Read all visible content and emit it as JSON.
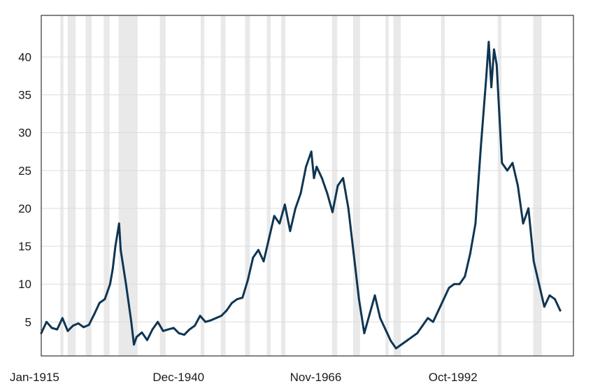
{
  "chart_data": {
    "type": "line",
    "title": "",
    "xlabel": "",
    "ylabel": "",
    "x_tick_labels": [
      "Jan-1915",
      "Dec-1940",
      "Nov-1966",
      "Oct-1992"
    ],
    "x_tick_dates": [
      1915.0,
      1940.92,
      1966.83,
      1992.75
    ],
    "y_ticks": [
      5,
      10,
      15,
      20,
      25,
      30,
      35,
      40
    ],
    "xlim": [
      1915.0,
      2015.5
    ],
    "ylim": [
      0.5,
      45.5
    ],
    "grid": true,
    "legend": "none",
    "colors": {
      "line": "#0f3552",
      "recession": "#e9e9e9",
      "grid": "#dcdcdc",
      "frame": "#333333"
    },
    "recessions": [
      [
        1918.6,
        1919.2
      ],
      [
        1920.0,
        1921.5
      ],
      [
        1923.4,
        1924.5
      ],
      [
        1926.8,
        1927.9
      ],
      [
        1929.6,
        1933.2
      ],
      [
        1937.4,
        1938.5
      ],
      [
        1945.1,
        1945.8
      ],
      [
        1948.9,
        1949.8
      ],
      [
        1953.5,
        1954.4
      ],
      [
        1957.6,
        1958.3
      ],
      [
        1960.3,
        1961.1
      ],
      [
        1969.9,
        1970.9
      ],
      [
        1973.9,
        1975.2
      ],
      [
        1980.0,
        1980.6
      ],
      [
        1981.5,
        1982.9
      ],
      [
        1990.5,
        1991.2
      ],
      [
        2001.2,
        2001.9
      ],
      [
        2007.9,
        2009.5
      ]
    ],
    "series": [
      {
        "x": [
          1915.0,
          1916.0,
          1917.0,
          1918.0,
          1919.0,
          1920.0,
          1921.0,
          1922.0,
          1923.0,
          1924.0,
          1925.0,
          1926.0,
          1927.0,
          1928.0,
          1928.5,
          1929.0,
          1929.7,
          1930.0,
          1931.0,
          1932.0,
          1932.5,
          1933.0,
          1934.0,
          1935.0,
          1936.0,
          1937.0,
          1938.0,
          1939.0,
          1940.0,
          1941.0,
          1942.0,
          1943.0,
          1944.0,
          1945.0,
          1946.0,
          1947.0,
          1948.0,
          1949.0,
          1950.0,
          1951.0,
          1952.0,
          1953.0,
          1954.0,
          1955.0,
          1956.0,
          1957.0,
          1958.0,
          1959.0,
          1960.0,
          1961.0,
          1962.0,
          1963.0,
          1964.0,
          1965.0,
          1966.0,
          1966.5,
          1967.0,
          1968.0,
          1969.0,
          1970.0,
          1971.0,
          1972.0,
          1973.0,
          1974.0,
          1975.0,
          1976.0,
          1977.0,
          1978.0,
          1979.0,
          1980.0,
          1981.0,
          1982.0,
          1983.0,
          1984.0,
          1985.0,
          1986.0,
          1987.0,
          1988.0,
          1989.0,
          1990.0,
          1991.0,
          1992.0,
          1993.0,
          1994.0,
          1995.0,
          1996.0,
          1997.0,
          1998.0,
          1999.0,
          1999.5,
          2000.0,
          2000.5,
          2001.0,
          2002.0,
          2003.0,
          2004.0,
          2005.0,
          2006.0,
          2007.0,
          2008.0,
          2009.0,
          2010.0,
          2011.0,
          2012.0,
          2013.0
        ],
        "values": [
          3.5,
          5.0,
          4.2,
          4.0,
          5.5,
          3.8,
          4.5,
          4.8,
          4.3,
          4.6,
          6.0,
          7.5,
          8.0,
          10.0,
          12.0,
          15.0,
          18.0,
          14.5,
          10.0,
          5.0,
          2.0,
          3.0,
          3.6,
          2.6,
          4.0,
          5.0,
          3.8,
          4.0,
          4.2,
          3.5,
          3.3,
          4.0,
          4.5,
          5.8,
          5.0,
          5.2,
          5.5,
          5.8,
          6.5,
          7.5,
          8.0,
          8.2,
          10.5,
          13.5,
          14.5,
          13.0,
          16.0,
          19.0,
          18.0,
          20.5,
          17.0,
          20.0,
          22.0,
          25.5,
          27.5,
          24.0,
          25.5,
          24.0,
          22.0,
          19.5,
          23.0,
          24.0,
          20.0,
          14.0,
          8.0,
          3.5,
          6.0,
          8.5,
          5.5,
          4.0,
          2.5,
          1.5,
          2.0,
          2.5,
          3.0,
          3.5,
          4.5,
          5.5,
          5.0,
          6.5,
          8.0,
          9.5,
          10.0,
          10.0,
          11.0,
          14.0,
          18.0,
          28.0,
          37.0,
          42.0,
          36.0,
          41.0,
          39.0,
          26.0,
          25.0,
          26.0,
          23.0,
          18.0,
          20.0,
          13.0,
          10.0,
          7.0,
          8.5,
          8.0,
          6.5
        ]
      }
    ]
  }
}
